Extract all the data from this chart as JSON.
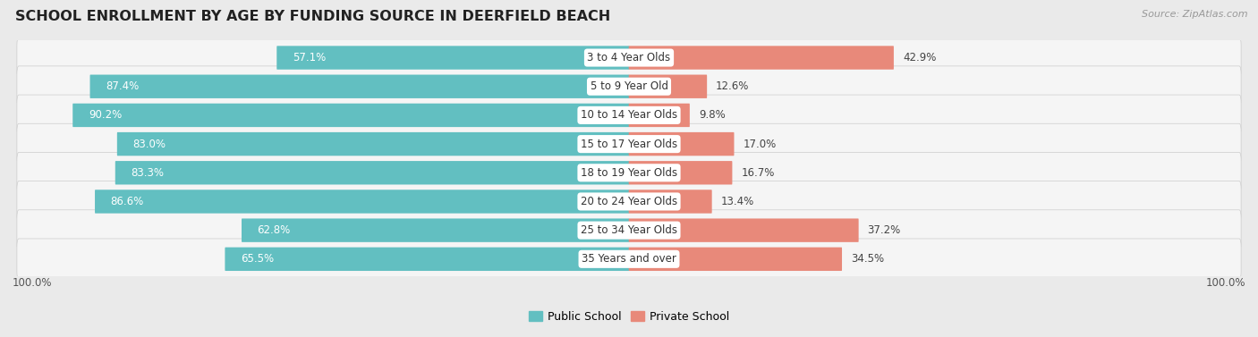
{
  "title": "SCHOOL ENROLLMENT BY AGE BY FUNDING SOURCE IN DEERFIELD BEACH",
  "source": "Source: ZipAtlas.com",
  "categories": [
    "3 to 4 Year Olds",
    "5 to 9 Year Old",
    "10 to 14 Year Olds",
    "15 to 17 Year Olds",
    "18 to 19 Year Olds",
    "20 to 24 Year Olds",
    "25 to 34 Year Olds",
    "35 Years and over"
  ],
  "public_values": [
    57.1,
    87.4,
    90.2,
    83.0,
    83.3,
    86.6,
    62.8,
    65.5
  ],
  "private_values": [
    42.9,
    12.6,
    9.8,
    17.0,
    16.7,
    13.4,
    37.2,
    34.5
  ],
  "public_color": "#62bfc1",
  "private_color": "#e8897a",
  "private_color_light": "#f0a898",
  "bg_color": "#eaeaea",
  "row_bg": "#f5f5f5",
  "title_fontsize": 11.5,
  "bar_label_fontsize": 8.5,
  "cat_label_fontsize": 8.5,
  "tick_fontsize": 8.5,
  "source_fontsize": 8,
  "legend_fontsize": 9
}
